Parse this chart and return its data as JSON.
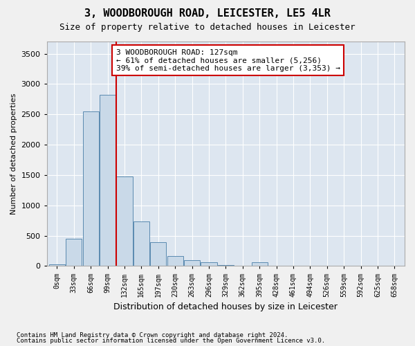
{
  "title": "3, WOODBOROUGH ROAD, LEICESTER, LE5 4LR",
  "subtitle": "Size of property relative to detached houses in Leicester",
  "xlabel": "Distribution of detached houses by size in Leicester",
  "ylabel": "Number of detached properties",
  "bar_color": "#c9d9e8",
  "bar_edge_color": "#5a8ab0",
  "background_color": "#dde6f0",
  "grid_color": "#ffffff",
  "vline_x": 3.5,
  "vline_color": "#cc0000",
  "annotation_text": "3 WOODBOROUGH ROAD: 127sqm\n← 61% of detached houses are smaller (5,256)\n39% of semi-detached houses are larger (3,353) →",
  "annotation_box_color": "#ffffff",
  "annotation_box_edge": "#cc0000",
  "footnote1": "Contains HM Land Registry data © Crown copyright and database right 2024.",
  "footnote2": "Contains public sector information licensed under the Open Government Licence v3.0.",
  "bin_labels": [
    "0sqm",
    "33sqm",
    "66sqm",
    "99sqm",
    "132sqm",
    "165sqm",
    "197sqm",
    "230sqm",
    "263sqm",
    "296sqm",
    "329sqm",
    "362sqm",
    "395sqm",
    "428sqm",
    "461sqm",
    "494sqm",
    "526sqm",
    "559sqm",
    "592sqm",
    "625sqm",
    "658sqm"
  ],
  "bar_values": [
    30,
    450,
    2550,
    2820,
    1480,
    730,
    390,
    160,
    90,
    60,
    20,
    5,
    60,
    5,
    5,
    5,
    5,
    5,
    5,
    5,
    0
  ],
  "ylim": [
    0,
    3700
  ],
  "yticks": [
    0,
    500,
    1000,
    1500,
    2000,
    2500,
    3000,
    3500
  ]
}
